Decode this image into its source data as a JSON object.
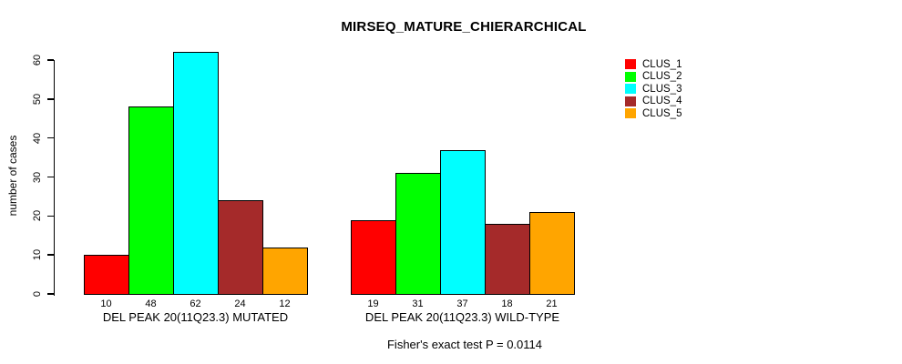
{
  "chart_data": {
    "type": "bar",
    "title": "MIRSEQ_MATURE_CHIERARCHICAL",
    "ylabel": "number of cases",
    "xlabel": "",
    "ylim": [
      0,
      62
    ],
    "yticks": [
      0,
      10,
      20,
      30,
      40,
      50,
      60
    ],
    "grid": false,
    "legend_position": "right",
    "bar_value_labels": true,
    "categories": [
      "DEL PEAK 20(11Q23.3) MUTATED",
      "DEL PEAK 20(11Q23.3) WILD-TYPE"
    ],
    "series": [
      {
        "name": "CLUS_1",
        "color": "#FF0000",
        "values": [
          10,
          19
        ]
      },
      {
        "name": "CLUS_2",
        "color": "#00FF00",
        "values": [
          48,
          31
        ]
      },
      {
        "name": "CLUS_3",
        "color": "#00FFFF",
        "values": [
          62,
          37
        ]
      },
      {
        "name": "CLUS_4",
        "color": "#A52A2A",
        "values": [
          24,
          18
        ]
      },
      {
        "name": "CLUS_5",
        "color": "#FFA500",
        "values": [
          12,
          21
        ]
      }
    ],
    "annotation": "Fisher's exact test P = 0.0114"
  }
}
